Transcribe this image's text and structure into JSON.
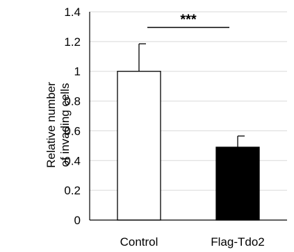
{
  "chart_data": {
    "type": "bar",
    "categories": [
      "Control",
      "Flag-Tdo2"
    ],
    "values": [
      1.0,
      0.49
    ],
    "errors": [
      0.185,
      0.075
    ],
    "bar_colors": [
      "#ffffff",
      "#000000"
    ],
    "edge_color": "#000000",
    "ylabel_line1": "Relative number",
    "ylabel_line2": "of invading cells",
    "ylim": [
      0,
      1.4
    ],
    "yticks": [
      "0",
      "0.2",
      "0.4",
      "0.6",
      "0.8",
      "1",
      "1.2",
      "1.4"
    ],
    "grid": true,
    "grid_color": "#d9d9d9",
    "significance": {
      "label": "***",
      "between": [
        "Control",
        "Flag-Tdo2"
      ],
      "y": 1.295
    }
  }
}
